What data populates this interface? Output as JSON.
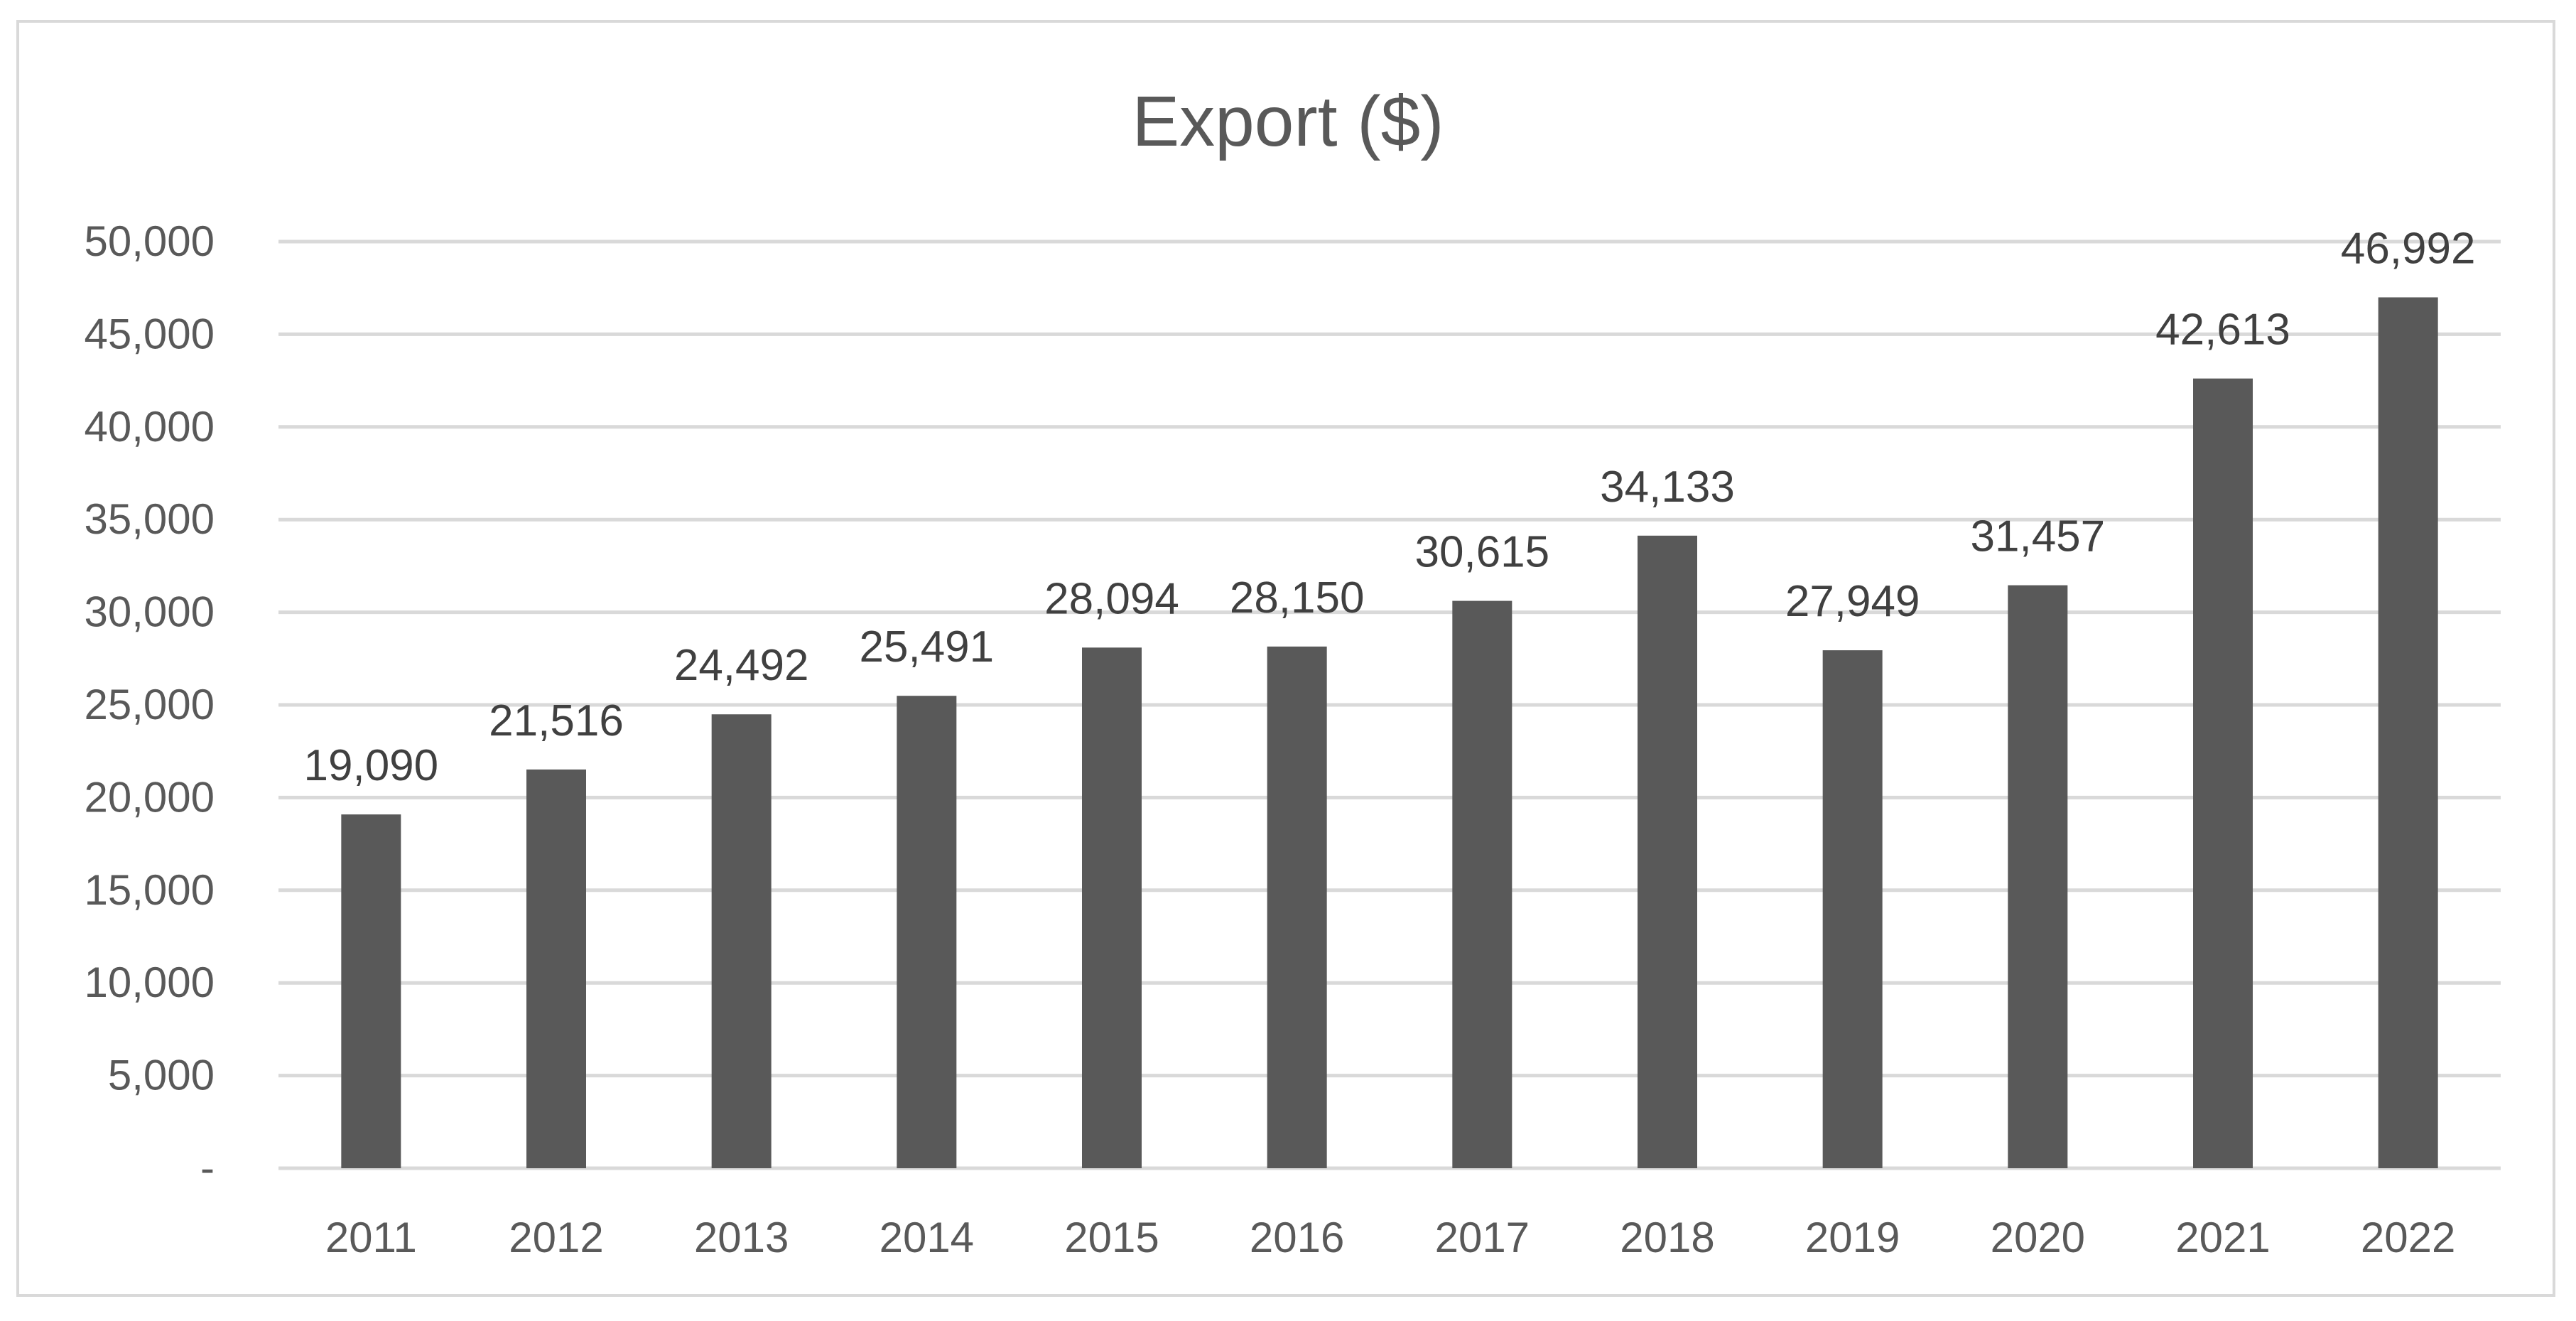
{
  "chart_data": {
    "type": "bar",
    "title": "Export ($)",
    "xlabel": "",
    "ylabel": "",
    "categories": [
      "2011",
      "2012",
      "2013",
      "2014",
      "2015",
      "2016",
      "2017",
      "2018",
      "2019",
      "2020",
      "2021",
      "2022"
    ],
    "values": [
      19090,
      21516,
      24492,
      25491,
      28094,
      28150,
      30615,
      34133,
      27949,
      31457,
      42613,
      46992
    ],
    "data_labels": [
      "19,090",
      "21,516",
      "24,492",
      "25,491",
      "28,094",
      "28,150",
      "30,615",
      "34,133",
      "27,949",
      "31,457",
      "42,613",
      "46,992"
    ],
    "ylim": [
      0,
      50000
    ],
    "y_ticks": [
      0,
      5000,
      10000,
      15000,
      20000,
      25000,
      30000,
      35000,
      40000,
      45000,
      50000
    ],
    "y_tick_labels": [
      "-",
      "5,000",
      "10,000",
      "15,000",
      "20,000",
      "25,000",
      "30,000",
      "35,000",
      "40,000",
      "45,000",
      "50,000"
    ],
    "grid": true,
    "legend": "none",
    "bar_color": "#595959",
    "grid_color": "#d9d9d9"
  }
}
